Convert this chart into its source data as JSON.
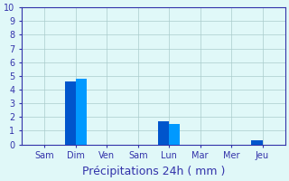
{
  "days": [
    "Sam",
    "Dim",
    "Ven",
    "Sam",
    "Lun",
    "Mar",
    "Mer",
    "Jeu"
  ],
  "series1": [
    0,
    4.6,
    0,
    0,
    1.7,
    0,
    0,
    0.3
  ],
  "series2": [
    0,
    4.8,
    0,
    0,
    1.5,
    0,
    0,
    0
  ],
  "bar_color1": "#0055cc",
  "bar_color2": "#0099ff",
  "background_color": "#e0f8f8",
  "grid_color": "#aacccc",
  "axis_color": "#3333aa",
  "xlabel": "Précipitations 24h ( mm )",
  "xlabel_fontsize": 9,
  "ylim": [
    0,
    10
  ],
  "yticks": [
    0,
    1,
    2,
    3,
    4,
    5,
    6,
    7,
    8,
    9,
    10
  ],
  "bar_width": 0.35,
  "tick_fontsize": 7,
  "tick_color": "#3333aa"
}
